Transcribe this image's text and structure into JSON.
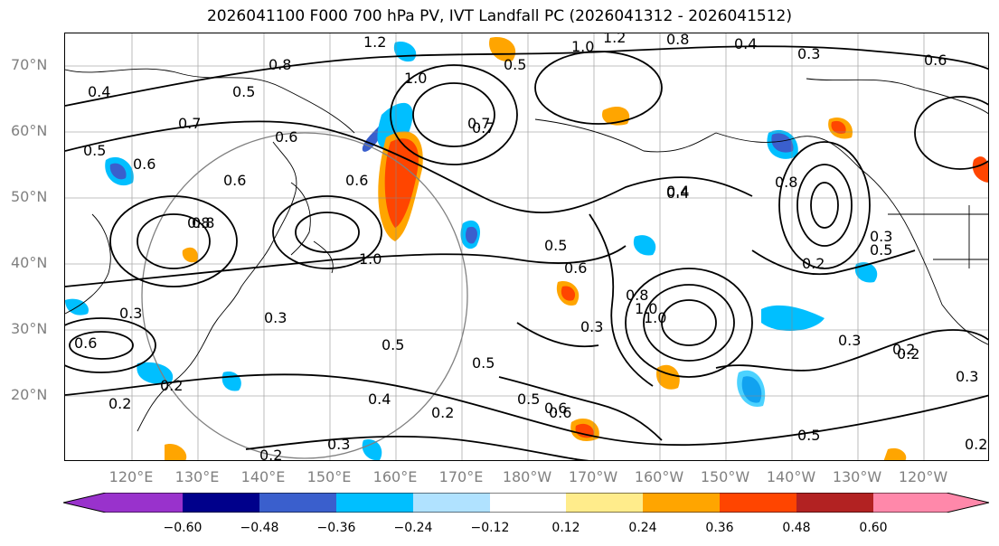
{
  "title": "2026041100 F000 700 hPa PV, IVT Landfall PC (2026041312 - 2026041512)",
  "map": {
    "lat_labels": [
      "70°N",
      "60°N",
      "50°N",
      "40°N",
      "30°N",
      "20°N"
    ],
    "lon_labels": [
      "120°E",
      "130°E",
      "140°E",
      "150°E",
      "160°E",
      "170°E",
      "180°W",
      "170°W",
      "160°W",
      "150°W",
      "140°W",
      "130°W",
      "120°W"
    ],
    "contour_labels": [
      "1.2",
      "1.0",
      "1.2",
      "0.8",
      "0.4",
      "0.3",
      "1.0",
      "0.8",
      "0.6",
      "0.5",
      "0.4",
      "0.5",
      "0.6",
      "0.7",
      "0.6",
      "0.5",
      "0.6",
      "0.8",
      "0.7",
      "0.6",
      "0.4",
      "0.5",
      "0.6",
      "0.4",
      "0.8",
      "1.0",
      "0.5",
      "0.3",
      "0.5",
      "0.6",
      "0.8",
      "0.5",
      "0.3",
      "0.6",
      "1.0",
      "0.5",
      "0.3",
      "0.3",
      "0.2",
      "0.2",
      "0.4",
      "0.3",
      "0.6",
      "0.5",
      "0.2",
      "0.2",
      "0.2",
      "0.3",
      "0.2",
      "0.2",
      "0.7",
      "0.8",
      "1.0",
      "0.3",
      "0.2"
    ]
  },
  "colorbar": {
    "tick_labels": [
      "−0.60",
      "−0.48",
      "−0.36",
      "−0.24",
      "−0.12",
      "0.12",
      "0.24",
      "0.36",
      "0.48",
      "0.60"
    ],
    "colors": [
      "#9932cc",
      "#00008b",
      "#3a5fcd",
      "#00bfff",
      "#b0e2ff",
      "#ffffff",
      "#ffec8b",
      "#ffa500",
      "#ff4500",
      "#b22222",
      "#ff88aa"
    ]
  }
}
